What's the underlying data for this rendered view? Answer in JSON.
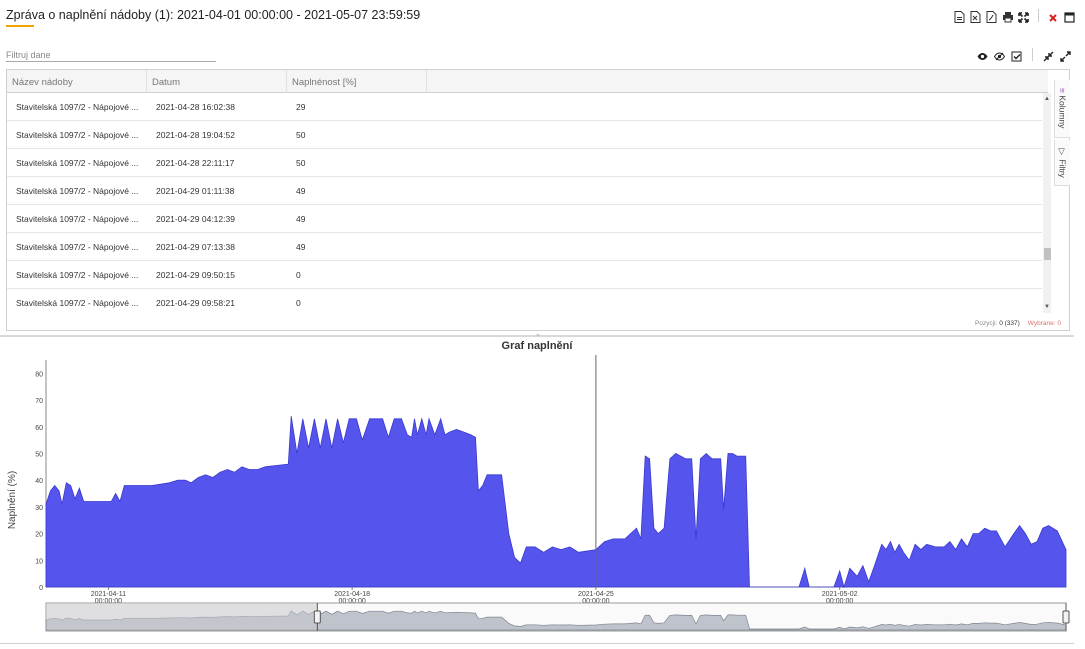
{
  "window": {
    "title": "Zpráva o naplnění nádoby (1): 2021-04-01 00:00:00 - 2021-05-07 23:59:59"
  },
  "toolbar": {
    "icons": [
      "export-csv-icon",
      "export-xls-icon",
      "export-pdf-icon",
      "print-icon",
      "fullscreen-icon",
      "close-icon",
      "maximize-icon"
    ]
  },
  "filter": {
    "placeholder": "Filtruj dane",
    "value": ""
  },
  "view_icons": [
    "show-icon",
    "hide-icon",
    "check-icon",
    "collapse-icon",
    "expand-icon"
  ],
  "grid": {
    "columns": [
      "Název nádoby",
      "Datum",
      "Naplnénost [%]"
    ],
    "rows": [
      {
        "name": "Stavitelská 1097/2 - Nápojové ...",
        "date": "2021-04-28 16:02:38",
        "fill": "29"
      },
      {
        "name": "Stavitelská 1097/2 - Nápojové ...",
        "date": "2021-04-28 19:04:52",
        "fill": "50"
      },
      {
        "name": "Stavitelská 1097/2 - Nápojové ...",
        "date": "2021-04-28 22:11:17",
        "fill": "50"
      },
      {
        "name": "Stavitelská 1097/2 - Nápojové ...",
        "date": "2021-04-29 01:11:38",
        "fill": "49"
      },
      {
        "name": "Stavitelská 1097/2 - Nápojové ...",
        "date": "2021-04-29 04:12:39",
        "fill": "49"
      },
      {
        "name": "Stavitelská 1097/2 - Nápojové ...",
        "date": "2021-04-29 07:13:38",
        "fill": "49"
      },
      {
        "name": "Stavitelská 1097/2 - Nápojové ...",
        "date": "2021-04-29 09:50:15",
        "fill": "0"
      },
      {
        "name": "Stavitelská 1097/2 - Nápojové ...",
        "date": "2021-04-29 09:58:21",
        "fill": "0"
      }
    ],
    "side_tabs": [
      "Kolumny",
      "Filtry"
    ],
    "footer": {
      "position_label": "Pozycji:",
      "position_value": "0 (337)",
      "selected_label": "Wybrane:",
      "selected_value": "0"
    }
  },
  "chart_data": {
    "type": "area",
    "title": "Graf naplnění",
    "ylabel": "Naplnění (%)",
    "xlabel": "",
    "ylim": [
      0,
      85
    ],
    "y_ticks": [
      0,
      10,
      20,
      30,
      40,
      50,
      60,
      70,
      80
    ],
    "x_ticks": [
      {
        "date": "2021-04-11",
        "time": "00:00:00"
      },
      {
        "date": "2021-04-18",
        "time": "00:00:00"
      },
      {
        "date": "2021-04-25",
        "time": "00:00:00"
      },
      {
        "date": "2021-05-02",
        "time": "00:00:00"
      }
    ],
    "x_range": [
      "2021-04-09 05:00",
      "2021-05-08 12:00"
    ],
    "cursor_x": "2021-04-25 00:00",
    "series_color": "#5555ee",
    "points": [
      [
        "2021-04-09 05:00",
        31
      ],
      [
        "2021-04-09 08:00",
        36
      ],
      [
        "2021-04-09 11:00",
        38
      ],
      [
        "2021-04-09 14:00",
        36
      ],
      [
        "2021-04-09 16:00",
        31
      ],
      [
        "2021-04-09 19:00",
        39
      ],
      [
        "2021-04-09 22:00",
        38
      ],
      [
        "2021-04-10 01:00",
        33
      ],
      [
        "2021-04-10 04:00",
        37
      ],
      [
        "2021-04-10 07:00",
        32
      ],
      [
        "2021-04-10 16:00",
        32
      ],
      [
        "2021-04-11 02:00",
        32
      ],
      [
        "2021-04-11 05:00",
        35
      ],
      [
        "2021-04-11 08:00",
        32
      ],
      [
        "2021-04-11 11:00",
        38
      ],
      [
        "2021-04-12 06:00",
        38
      ],
      [
        "2021-04-12 18:00",
        39
      ],
      [
        "2021-04-13 00:00",
        40
      ],
      [
        "2021-04-13 05:00",
        40
      ],
      [
        "2021-04-13 09:00",
        39
      ],
      [
        "2021-04-13 14:00",
        41
      ],
      [
        "2021-04-13 19:00",
        42
      ],
      [
        "2021-04-14 00:00",
        41
      ],
      [
        "2021-04-14 05:00",
        43
      ],
      [
        "2021-04-14 10:00",
        44
      ],
      [
        "2021-04-14 15:00",
        43
      ],
      [
        "2021-04-14 20:00",
        45
      ],
      [
        "2021-04-15 01:00",
        44
      ],
      [
        "2021-04-15 07:00",
        44
      ],
      [
        "2021-04-15 12:00",
        45
      ],
      [
        "2021-04-16 04:00",
        46
      ],
      [
        "2021-04-16 06:00",
        64
      ],
      [
        "2021-04-16 10:00",
        50
      ],
      [
        "2021-04-16 14:00",
        63
      ],
      [
        "2021-04-16 18:00",
        52
      ],
      [
        "2021-04-16 22:00",
        63
      ],
      [
        "2021-04-17 02:00",
        52
      ],
      [
        "2021-04-17 06:00",
        63
      ],
      [
        "2021-04-17 10:00",
        52
      ],
      [
        "2021-04-17 14:00",
        63
      ],
      [
        "2021-04-17 18:00",
        54
      ],
      [
        "2021-04-17 22:00",
        63
      ],
      [
        "2021-04-18 03:00",
        63
      ],
      [
        "2021-04-18 07:00",
        55
      ],
      [
        "2021-04-18 12:00",
        63
      ],
      [
        "2021-04-18 21:00",
        63
      ],
      [
        "2021-04-19 01:00",
        56
      ],
      [
        "2021-04-19 05:00",
        63
      ],
      [
        "2021-04-19 10:00",
        63
      ],
      [
        "2021-04-19 14:00",
        57
      ],
      [
        "2021-04-19 17:00",
        56
      ],
      [
        "2021-04-19 19:00",
        63
      ],
      [
        "2021-04-19 21:00",
        57
      ],
      [
        "2021-04-20 00:00",
        63
      ],
      [
        "2021-04-20 03:00",
        57
      ],
      [
        "2021-04-20 05:00",
        63
      ],
      [
        "2021-04-20 09:00",
        57
      ],
      [
        "2021-04-20 13:00",
        63
      ],
      [
        "2021-04-20 16:00",
        57
      ],
      [
        "2021-04-20 19:00",
        58
      ],
      [
        "2021-04-21 00:00",
        59
      ],
      [
        "2021-04-21 05:00",
        58
      ],
      [
        "2021-04-21 10:00",
        57
      ],
      [
        "2021-04-21 13:00",
        56
      ],
      [
        "2021-04-21 15:00",
        36
      ],
      [
        "2021-04-21 18:00",
        38
      ],
      [
        "2021-04-21 21:00",
        42
      ],
      [
        "2021-04-22 04:00",
        42
      ],
      [
        "2021-04-22 07:00",
        42
      ],
      [
        "2021-04-22 12:00",
        20
      ],
      [
        "2021-04-22 16:00",
        11
      ],
      [
        "2021-04-22 20:00",
        9
      ],
      [
        "2021-04-23 00:00",
        15
      ],
      [
        "2021-04-23 06:00",
        15
      ],
      [
        "2021-04-23 12:00",
        13
      ],
      [
        "2021-04-23 18:00",
        15
      ],
      [
        "2021-04-24 00:00",
        14
      ],
      [
        "2021-04-24 06:00",
        15
      ],
      [
        "2021-04-24 12:00",
        13
      ],
      [
        "2021-04-25 00:00",
        14
      ],
      [
        "2021-04-25 06:00",
        17
      ],
      [
        "2021-04-25 12:00",
        18
      ],
      [
        "2021-04-25 20:00",
        18
      ],
      [
        "2021-04-26 00:00",
        20
      ],
      [
        "2021-04-26 04:00",
        22
      ],
      [
        "2021-04-26 07:00",
        18
      ],
      [
        "2021-04-26 10:00",
        49
      ],
      [
        "2021-04-26 13:00",
        48
      ],
      [
        "2021-04-26 16:00",
        22
      ],
      [
        "2021-04-26 19:00",
        20
      ],
      [
        "2021-04-26 23:00",
        22
      ],
      [
        "2021-04-27 03:00",
        48
      ],
      [
        "2021-04-27 07:00",
        50
      ],
      [
        "2021-04-27 14:00",
        48
      ],
      [
        "2021-04-27 18:00",
        48
      ],
      [
        "2021-04-27 21:00",
        18
      ],
      [
        "2021-04-28 00:00",
        48
      ],
      [
        "2021-04-28 04:00",
        50
      ],
      [
        "2021-04-28 08:00",
        48
      ],
      [
        "2021-04-28 14:00",
        48
      ],
      [
        "2021-04-28 16:02",
        29
      ],
      [
        "2021-04-28 19:04",
        50
      ],
      [
        "2021-04-28 22:11",
        50
      ],
      [
        "2021-04-29 01:11",
        49
      ],
      [
        "2021-04-29 04:12",
        49
      ],
      [
        "2021-04-29 07:13",
        49
      ],
      [
        "2021-04-29 09:50",
        0
      ],
      [
        "2021-04-29 09:58",
        0
      ],
      [
        "2021-04-30 20:00",
        0
      ],
      [
        "2021-05-01 00:00",
        7
      ],
      [
        "2021-05-01 03:00",
        0
      ],
      [
        "2021-05-01 20:00",
        0
      ],
      [
        "2021-05-02 00:00",
        6
      ],
      [
        "2021-05-02 03:00",
        0
      ],
      [
        "2021-05-02 07:00",
        7
      ],
      [
        "2021-05-02 12:00",
        4
      ],
      [
        "2021-05-02 16:00",
        8
      ],
      [
        "2021-05-02 20:00",
        2
      ],
      [
        "2021-05-03 00:00",
        8
      ],
      [
        "2021-05-03 05:00",
        16
      ],
      [
        "2021-05-03 08:00",
        14
      ],
      [
        "2021-05-03 11:00",
        17
      ],
      [
        "2021-05-03 14:00",
        13
      ],
      [
        "2021-05-03 17:00",
        16
      ],
      [
        "2021-05-03 20:00",
        13
      ],
      [
        "2021-05-04 00:00",
        10
      ],
      [
        "2021-05-04 04:00",
        16
      ],
      [
        "2021-05-04 08:00",
        14
      ],
      [
        "2021-05-04 12:00",
        16
      ],
      [
        "2021-05-04 18:00",
        15
      ],
      [
        "2021-05-05 00:00",
        15
      ],
      [
        "2021-05-05 04:00",
        17
      ],
      [
        "2021-05-05 08:00",
        14
      ],
      [
        "2021-05-05 12:00",
        18
      ],
      [
        "2021-05-05 16:00",
        15
      ],
      [
        "2021-05-05 20:00",
        20
      ],
      [
        "2021-05-06 00:00",
        20
      ],
      [
        "2021-05-06 04:00",
        22
      ],
      [
        "2021-05-06 08:00",
        21
      ],
      [
        "2021-05-06 12:00",
        21
      ],
      [
        "2021-05-06 18:00",
        15
      ],
      [
        "2021-05-07 00:00",
        20
      ],
      [
        "2021-05-07 04:00",
        23
      ],
      [
        "2021-05-07 08:00",
        20
      ],
      [
        "2021-05-07 12:00",
        16
      ],
      [
        "2021-05-07 16:00",
        17
      ],
      [
        "2021-05-07 20:00",
        22
      ],
      [
        "2021-05-08 00:00",
        23
      ],
      [
        "2021-05-08 06:00",
        21
      ],
      [
        "2021-05-08 12:00",
        14
      ]
    ],
    "navigator": {
      "range_start": "2021-04-17 00:00",
      "range_end": "2021-05-08 12:00"
    }
  }
}
